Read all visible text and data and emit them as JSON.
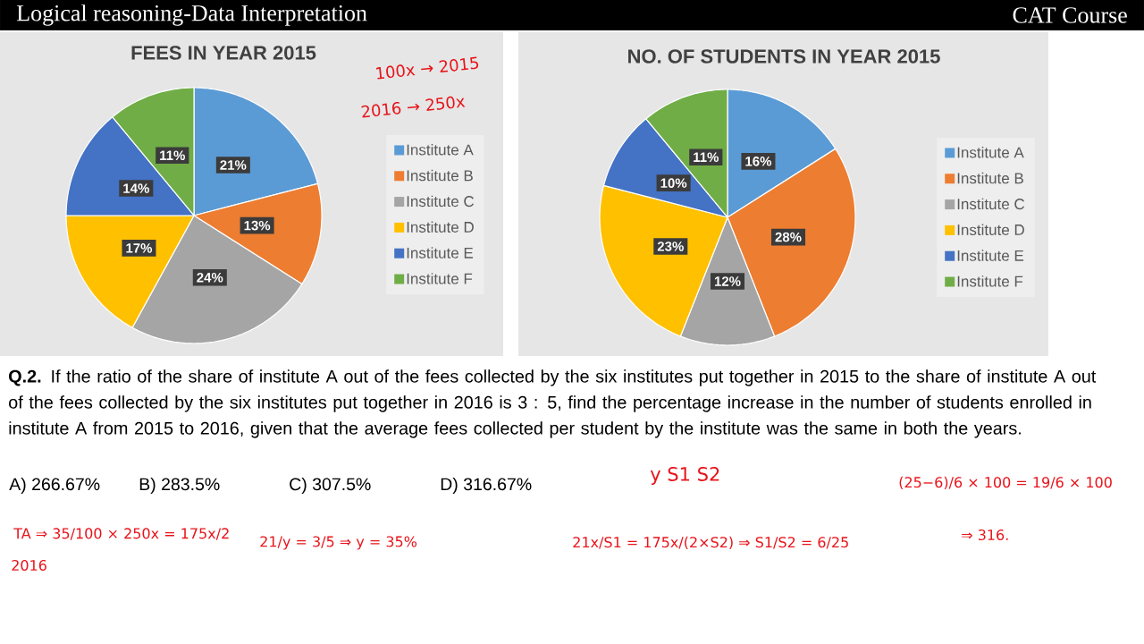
{
  "chart_data": [
    {
      "type": "other",
      "title": "Logical reasoning-Data Interpretation",
      "subtitle": "CAT Course"
    },
    {
      "type": "pie",
      "title": "FEES IN YEAR 2015",
      "categories": [
        "Institute A",
        "Institute B",
        "Institute C",
        "Institute D",
        "Institute E",
        "Institute F"
      ],
      "values": [
        21,
        13,
        24,
        17,
        14,
        11
      ],
      "colors": [
        "#5b9bd5",
        "#ed7d31",
        "#a5a5a5",
        "#ffc000",
        "#4472c4",
        "#70ad47"
      ],
      "value_labels": [
        "21%",
        "13%",
        "24%",
        "17%",
        "14%",
        "11%"
      ],
      "legend": "right",
      "annotations": [
        "100x → 2015",
        "2016 → 250x"
      ]
    },
    {
      "type": "pie",
      "title": "NO. OF STUDENTS IN YEAR 2015",
      "categories": [
        "Institute A",
        "Institute B",
        "Institute C",
        "Institute D",
        "Institute E",
        "Institute F"
      ],
      "values": [
        16,
        28,
        12,
        23,
        10,
        11
      ],
      "colors": [
        "#5b9bd5",
        "#ed7d31",
        "#a5a5a5",
        "#ffc000",
        "#4472c4",
        "#70ad47"
      ],
      "value_labels": [
        "16%",
        "28%",
        "12%",
        "23%",
        "10%",
        "11%"
      ],
      "legend": "right"
    },
    {
      "type": "other",
      "annotations": [
        "**Q.2.** If the ratio of the share of institute A out of the fees collected by the six institutes put together in 2015 to the share of institute A out of the fees collected by the six institutes put together in 2016 is 3 : 5, find the percentage increase in the number of students enrolled in institute A from 2015 to 2016, given that the average fees collected per student by the institute was the same in both the years.",
        "A) 266.67%",
        "B) 283.5%",
        "C) 307.5%",
        "D) 316.67%",
        "TA ⇒ 35/100 × 250x = 175x/2",
        "2016",
        "21/y = 3/5 ⇒ y = 35%",
        "y   S1   S2",
        "21x/S1 = 175x/(2×S2) ⇒ S1/S2 = 6/25",
        "(25−6)/6 × 100 = 19/6 × 100",
        "⇒ 316."
      ]
    }
  ]
}
